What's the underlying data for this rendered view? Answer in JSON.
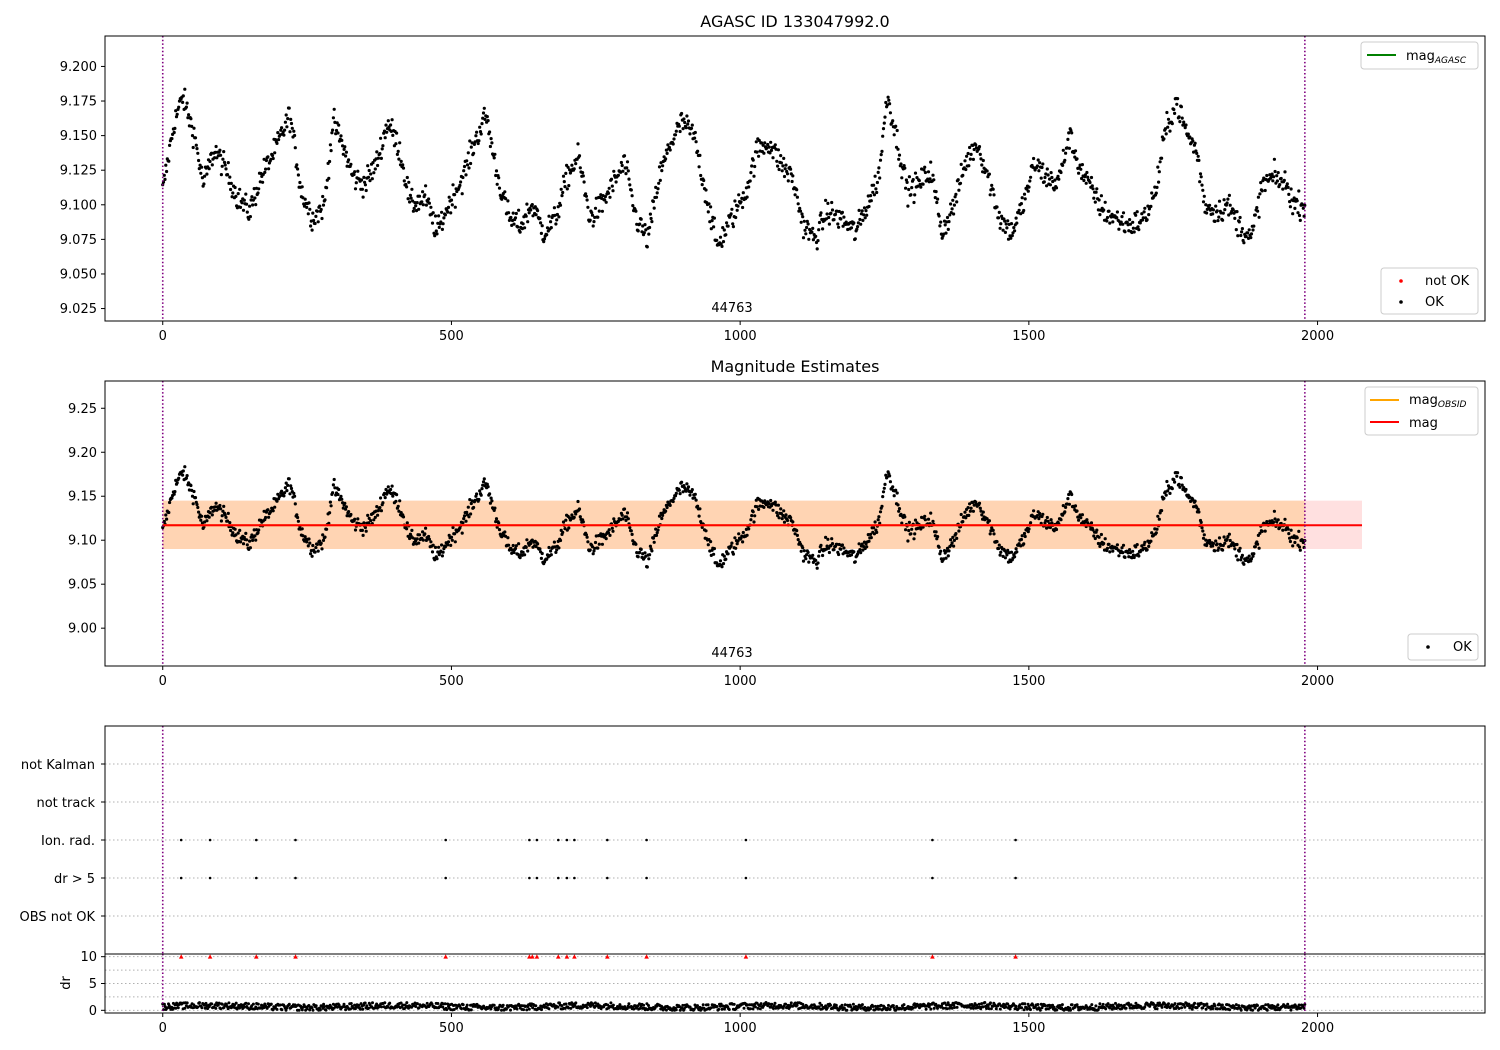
{
  "chart_data": [
    {
      "type": "scatter",
      "title": "AGASC ID 133047992.0",
      "xlabel": "",
      "ylabel": "",
      "xlim": [
        -100,
        2290
      ],
      "ylim": [
        9.016,
        9.222
      ],
      "xticks": [
        0,
        500,
        1000,
        1500,
        2000
      ],
      "yticks": [
        9.025,
        9.05,
        9.075,
        9.1,
        9.125,
        9.15,
        9.175,
        9.2
      ],
      "ytick_labels": [
        "9.025",
        "9.050",
        "9.075",
        "9.100",
        "9.125",
        "9.150",
        "9.175",
        "9.200"
      ],
      "obsid_label": "44763",
      "vertical_lines_x": [
        0,
        1978
      ],
      "legend_lines": [
        {
          "name": "mag_AGASC",
          "color": "#008000"
        }
      ],
      "legend_points": [
        {
          "name": "not OK",
          "color": "#ff0000"
        },
        {
          "name": "OK",
          "color": "#000000"
        }
      ],
      "series": [
        {
          "name": "OK",
          "color": "#000000",
          "x_start": 0,
          "x_end": 1978,
          "anchors": [
            [
              0,
              9.11
            ],
            [
              20,
              9.16
            ],
            [
              35,
              9.178
            ],
            [
              55,
              9.15
            ],
            [
              70,
              9.115
            ],
            [
              90,
              9.14
            ],
            [
              110,
              9.125
            ],
            [
              130,
              9.105
            ],
            [
              150,
              9.095
            ],
            [
              170,
              9.12
            ],
            [
              195,
              9.14
            ],
            [
              220,
              9.165
            ],
            [
              240,
              9.11
            ],
            [
              260,
              9.09
            ],
            [
              280,
              9.1
            ],
            [
              295,
              9.16
            ],
            [
              310,
              9.145
            ],
            [
              330,
              9.12
            ],
            [
              350,
              9.115
            ],
            [
              370,
              9.13
            ],
            [
              390,
              9.16
            ],
            [
              410,
              9.14
            ],
            [
              430,
              9.1
            ],
            [
              455,
              9.105
            ],
            [
              475,
              9.08
            ],
            [
              495,
              9.1
            ],
            [
              520,
              9.12
            ],
            [
              540,
              9.145
            ],
            [
              560,
              9.165
            ],
            [
              580,
              9.12
            ],
            [
              600,
              9.09
            ],
            [
              620,
              9.085
            ],
            [
              640,
              9.1
            ],
            [
              660,
              9.08
            ],
            [
              680,
              9.09
            ],
            [
              700,
              9.12
            ],
            [
              720,
              9.135
            ],
            [
              740,
              9.09
            ],
            [
              760,
              9.1
            ],
            [
              780,
              9.115
            ],
            [
              800,
              9.13
            ],
            [
              820,
              9.09
            ],
            [
              840,
              9.075
            ],
            [
              860,
              9.12
            ],
            [
              880,
              9.145
            ],
            [
              900,
              9.16
            ],
            [
              920,
              9.15
            ],
            [
              940,
              9.11
            ],
            [
              960,
              9.07
            ],
            [
              985,
              9.09
            ],
            [
              1010,
              9.11
            ],
            [
              1030,
              9.14
            ],
            [
              1050,
              9.145
            ],
            [
              1070,
              9.13
            ],
            [
              1090,
              9.12
            ],
            [
              1110,
              9.085
            ],
            [
              1130,
              9.075
            ],
            [
              1150,
              9.095
            ],
            [
              1175,
              9.09
            ],
            [
              1200,
              9.08
            ],
            [
              1220,
              9.1
            ],
            [
              1240,
              9.12
            ],
            [
              1255,
              9.18
            ],
            [
              1270,
              9.15
            ],
            [
              1290,
              9.11
            ],
            [
              1310,
              9.115
            ],
            [
              1330,
              9.125
            ],
            [
              1350,
              9.08
            ],
            [
              1370,
              9.1
            ],
            [
              1390,
              9.13
            ],
            [
              1410,
              9.145
            ],
            [
              1430,
              9.12
            ],
            [
              1450,
              9.09
            ],
            [
              1470,
              9.08
            ],
            [
              1490,
              9.1
            ],
            [
              1510,
              9.13
            ],
            [
              1530,
              9.12
            ],
            [
              1550,
              9.115
            ],
            [
              1570,
              9.15
            ],
            [
              1590,
              9.125
            ],
            [
              1610,
              9.11
            ],
            [
              1630,
              9.095
            ],
            [
              1650,
              9.09
            ],
            [
              1675,
              9.085
            ],
            [
              1700,
              9.09
            ],
            [
              1720,
              9.11
            ],
            [
              1735,
              9.15
            ],
            [
              1755,
              9.175
            ],
            [
              1775,
              9.15
            ],
            [
              1790,
              9.14
            ],
            [
              1805,
              9.1
            ],
            [
              1825,
              9.095
            ],
            [
              1845,
              9.1
            ],
            [
              1865,
              9.085
            ],
            [
              1885,
              9.075
            ],
            [
              1905,
              9.115
            ],
            [
              1925,
              9.12
            ],
            [
              1945,
              9.115
            ],
            [
              1960,
              9.1
            ],
            [
              1978,
              9.1
            ]
          ]
        }
      ]
    },
    {
      "type": "scatter",
      "title": "Magnitude Estimates",
      "xlabel": "",
      "ylabel": "",
      "xlim": [
        -100,
        2290
      ],
      "ylim": [
        8.957,
        9.281
      ],
      "xticks": [
        0,
        500,
        1000,
        1500,
        2000
      ],
      "yticks": [
        9.0,
        9.05,
        9.1,
        9.15,
        9.2,
        9.25
      ],
      "ytick_labels": [
        "9.00",
        "9.05",
        "9.10",
        "9.15",
        "9.20",
        "9.25"
      ],
      "obsid_label": "44763",
      "vertical_lines_x": [
        0,
        1978
      ],
      "mag_obsid": 9.117,
      "mag_obsid_band": [
        9.09,
        9.145
      ],
      "mag": 9.117,
      "mag_band": [
        9.09,
        9.145
      ],
      "mag_band_x": [
        0,
        2077
      ],
      "legend_lines": [
        {
          "name": "mag_OBSID",
          "color": "#ffa500"
        },
        {
          "name": "mag",
          "color": "#ff0000"
        }
      ],
      "legend_points": [
        {
          "name": "OK",
          "color": "#000000"
        }
      ]
    },
    {
      "type": "scatter",
      "title": "",
      "xlabel": "",
      "ylabel": "",
      "xlim": [
        -100,
        2290
      ],
      "xticks": [
        0,
        500,
        1000,
        1500,
        2000
      ],
      "flag_rows": [
        "not Kalman",
        "not track",
        "Ion. rad.",
        "dr > 5",
        "OBS not OK"
      ],
      "vertical_lines_x": [
        0,
        1978
      ],
      "flag_points": {
        "Ion. rad.": [
          32,
          82,
          162,
          230,
          490,
          635,
          648,
          685,
          700,
          713,
          770,
          838,
          1010,
          1333,
          1477
        ],
        "dr > 5": [
          32,
          82,
          162,
          230,
          490,
          635,
          648,
          685,
          700,
          713,
          770,
          838,
          1010,
          1333,
          1477
        ]
      }
    },
    {
      "type": "scatter",
      "title": "",
      "xlabel": "",
      "ylabel": "dr",
      "xlim": [
        -100,
        2290
      ],
      "ylim": [
        -0.5,
        10.5
      ],
      "xticks": [
        0,
        500,
        1000,
        1500,
        2000
      ],
      "yticks": [
        0,
        5,
        10
      ],
      "ytick_labels": [
        "0",
        "5",
        "10"
      ],
      "vertical_lines_x": [
        0,
        1978
      ],
      "dr_range": [
        0.1,
        1.6
      ],
      "clipped_marker_value": 10,
      "clipped_marker_x": [
        32,
        82,
        162,
        230,
        490,
        635,
        640,
        648,
        685,
        700,
        713,
        770,
        838,
        1010,
        1333,
        1477
      ]
    }
  ]
}
